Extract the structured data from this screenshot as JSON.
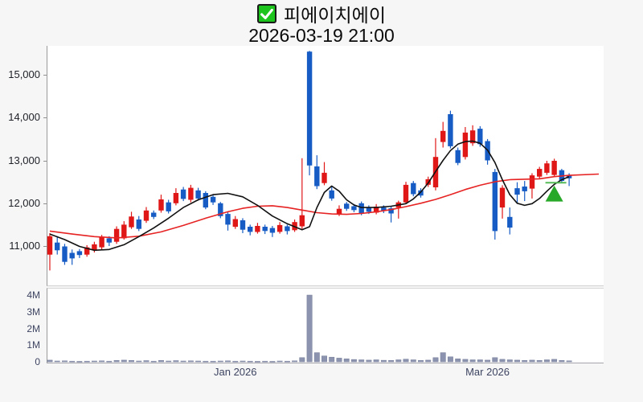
{
  "title": {
    "checkbox_checked": true,
    "name": "피에이치에이",
    "datetime": "2026-03-19 21:00"
  },
  "colors": {
    "up_candle": "#e01717",
    "down_candle": "#165cc4",
    "volume_bar": "#8b93ae",
    "volume_bar_edge": "#767e9a",
    "ma_fast": "#111111",
    "ma_slow": "#e62222",
    "marker_green": "#28a828",
    "marker_line_green": "#56bb56",
    "checkbox_green": "#1dc41d",
    "axis_label_dark": "#1d2026",
    "axis_label_slate": "#3d4460"
  },
  "chart_data": {
    "type": "candlestick",
    "title": "피에이치에이",
    "subtitle": "2026-03-19 21:00",
    "price_axis": {
      "ticks": [
        {
          "value": 15000,
          "label": "15,000"
        },
        {
          "value": 14000,
          "label": "14,000"
        },
        {
          "value": 13000,
          "label": "13,000"
        },
        {
          "value": 12000,
          "label": "12,000"
        },
        {
          "value": 11000,
          "label": "11,000"
        }
      ],
      "visible_range": [
        10080,
        15700
      ]
    },
    "volume_axis": {
      "ticks": [
        {
          "value": 4,
          "label": "4M"
        },
        {
          "value": 3,
          "label": "3M"
        },
        {
          "value": 2,
          "label": "2M"
        },
        {
          "value": 1,
          "label": "1M"
        },
        {
          "value": 0,
          "label": "0"
        }
      ],
      "visible_range_millions": [
        0,
        4.2
      ]
    },
    "x_axis": [
      {
        "label": "Jan 2026",
        "index": 25
      },
      {
        "label": "Mar 2026",
        "index": 59
      }
    ],
    "candles_ohlc": [
      [
        10800,
        11300,
        10430,
        11230
      ],
      [
        11080,
        11230,
        10800,
        10900
      ],
      [
        10990,
        11050,
        10560,
        10630
      ],
      [
        10840,
        10920,
        10560,
        10710
      ],
      [
        10880,
        10930,
        10720,
        10790
      ],
      [
        10800,
        11020,
        10750,
        10970
      ],
      [
        10900,
        11100,
        10850,
        11040
      ],
      [
        10970,
        11260,
        10900,
        11210
      ],
      [
        11180,
        11230,
        11000,
        11080
      ],
      [
        11100,
        11460,
        11050,
        11400
      ],
      [
        11180,
        11580,
        11150,
        11500
      ],
      [
        11440,
        11800,
        11400,
        11690
      ],
      [
        11620,
        11700,
        11350,
        11400
      ],
      [
        11590,
        11910,
        11540,
        11830
      ],
      [
        11780,
        11830,
        11630,
        11680
      ],
      [
        11830,
        12200,
        11780,
        12090
      ],
      [
        12020,
        12080,
        11760,
        11810
      ],
      [
        12000,
        12350,
        11950,
        12240
      ],
      [
        12320,
        12380,
        12050,
        12100
      ],
      [
        12080,
        12430,
        12020,
        12360
      ],
      [
        12300,
        12360,
        12060,
        12110
      ],
      [
        12240,
        12280,
        11860,
        11900
      ],
      [
        12150,
        12190,
        11960,
        12020
      ],
      [
        12000,
        12030,
        11650,
        11700
      ],
      [
        11750,
        11800,
        11360,
        11500
      ],
      [
        11450,
        11700,
        11400,
        11630
      ],
      [
        11600,
        11650,
        11300,
        11380
      ],
      [
        11450,
        11500,
        11250,
        11330
      ],
      [
        11330,
        11540,
        11290,
        11470
      ],
      [
        11450,
        11500,
        11280,
        11350
      ],
      [
        11420,
        11470,
        11210,
        11310
      ],
      [
        11330,
        11560,
        11290,
        11490
      ],
      [
        11460,
        11500,
        11270,
        11350
      ],
      [
        11370,
        11620,
        11330,
        11560
      ],
      [
        11460,
        13050,
        11400,
        11720
      ],
      [
        15540,
        15560,
        12650,
        12880
      ],
      [
        12860,
        13120,
        12330,
        12400
      ],
      [
        12470,
        12960,
        12420,
        12710
      ],
      [
        12300,
        12380,
        12060,
        12110
      ],
      [
        11740,
        11950,
        11700,
        11870
      ],
      [
        11990,
        12030,
        11820,
        11870
      ],
      [
        11930,
        11980,
        11790,
        11840
      ],
      [
        12000,
        12040,
        11720,
        11760
      ],
      [
        11900,
        11950,
        11750,
        11800
      ],
      [
        11780,
        11980,
        11740,
        11920
      ],
      [
        11900,
        11950,
        11770,
        11820
      ],
      [
        11880,
        11920,
        11550,
        11760
      ],
      [
        11900,
        12060,
        11640,
        12020
      ],
      [
        12020,
        12500,
        11980,
        12430
      ],
      [
        12470,
        12520,
        12160,
        12210
      ],
      [
        12300,
        12350,
        12130,
        12180
      ],
      [
        12430,
        12620,
        12380,
        12560
      ],
      [
        12370,
        13520,
        12300,
        13080
      ],
      [
        13430,
        13900,
        13300,
        13690
      ],
      [
        14080,
        14160,
        13280,
        13330
      ],
      [
        13240,
        13300,
        12890,
        12940
      ],
      [
        13080,
        13780,
        13020,
        13650
      ],
      [
        13400,
        13820,
        13340,
        13700
      ],
      [
        13740,
        13800,
        13320,
        13380
      ],
      [
        13450,
        13500,
        12900,
        13000
      ],
      [
        12730,
        12800,
        11150,
        11350
      ],
      [
        11900,
        12420,
        11640,
        12360
      ],
      [
        11680,
        11900,
        11270,
        11430
      ],
      [
        12350,
        12490,
        11990,
        12200
      ],
      [
        12390,
        12520,
        12050,
        12280
      ],
      [
        12340,
        12700,
        12110,
        12650
      ],
      [
        12620,
        12850,
        12560,
        12800
      ],
      [
        12710,
        12990,
        12660,
        12930
      ],
      [
        12660,
        13040,
        12620,
        12990
      ],
      [
        12770,
        12800,
        12470,
        12520
      ],
      [
        12650,
        12700,
        12400,
        12580
      ]
    ],
    "volumes_millions": [
      0.1,
      0.05,
      0.06,
      0.04,
      0.03,
      0.04,
      0.05,
      0.06,
      0.04,
      0.08,
      0.1,
      0.08,
      0.05,
      0.07,
      0.04,
      0.08,
      0.05,
      0.07,
      0.05,
      0.06,
      0.05,
      0.04,
      0.04,
      0.05,
      0.06,
      0.04,
      0.05,
      0.04,
      0.03,
      0.04,
      0.03,
      0.05,
      0.04,
      0.06,
      0.25,
      4.0,
      0.55,
      0.35,
      0.28,
      0.22,
      0.18,
      0.14,
      0.12,
      0.1,
      0.12,
      0.09,
      0.08,
      0.12,
      0.16,
      0.12,
      0.08,
      0.1,
      0.25,
      0.55,
      0.3,
      0.18,
      0.15,
      0.12,
      0.12,
      0.1,
      0.25,
      0.15,
      0.12,
      0.1,
      0.08,
      0.1,
      0.08,
      0.12,
      0.15,
      0.08,
      0.06
    ],
    "ma_fast_points": [
      [
        0,
        11280
      ],
      [
        2,
        11150
      ],
      [
        4,
        10990
      ],
      [
        6,
        10900
      ],
      [
        8,
        10920
      ],
      [
        10,
        11030
      ],
      [
        12,
        11220
      ],
      [
        14,
        11420
      ],
      [
        16,
        11650
      ],
      [
        18,
        11900
      ],
      [
        20,
        12080
      ],
      [
        22,
        12200
      ],
      [
        24,
        12230
      ],
      [
        26,
        12150
      ],
      [
        28,
        11950
      ],
      [
        30,
        11700
      ],
      [
        32,
        11520
      ],
      [
        33,
        11450
      ],
      [
        34,
        11380
      ],
      [
        35,
        11450
      ],
      [
        36,
        11900
      ],
      [
        37,
        12250
      ],
      [
        38,
        12400
      ],
      [
        39,
        12280
      ],
      [
        40,
        12080
      ],
      [
        41,
        11960
      ],
      [
        42,
        11900
      ],
      [
        44,
        11900
      ],
      [
        46,
        11930
      ],
      [
        48,
        11990
      ],
      [
        49,
        12100
      ],
      [
        50,
        12260
      ],
      [
        51,
        12470
      ],
      [
        52,
        12740
      ],
      [
        53,
        13000
      ],
      [
        54,
        13230
      ],
      [
        55,
        13380
      ],
      [
        56,
        13440
      ],
      [
        57,
        13450
      ],
      [
        58,
        13400
      ],
      [
        59,
        13240
      ],
      [
        60,
        12950
      ],
      [
        61,
        12550
      ],
      [
        62,
        12200
      ],
      [
        63,
        12000
      ],
      [
        64,
        11950
      ],
      [
        65,
        11990
      ],
      [
        66,
        12110
      ],
      [
        67,
        12280
      ],
      [
        68,
        12440
      ],
      [
        69,
        12550
      ],
      [
        70,
        12620
      ]
    ],
    "ma_slow_points": [
      [
        0,
        11350
      ],
      [
        3,
        11280
      ],
      [
        6,
        11220
      ],
      [
        9,
        11190
      ],
      [
        12,
        11230
      ],
      [
        15,
        11330
      ],
      [
        18,
        11480
      ],
      [
        21,
        11650
      ],
      [
        24,
        11800
      ],
      [
        26,
        11880
      ],
      [
        28,
        11930
      ],
      [
        30,
        11940
      ],
      [
        32,
        11900
      ],
      [
        34,
        11840
      ],
      [
        36,
        11780
      ],
      [
        38,
        11750
      ],
      [
        40,
        11740
      ],
      [
        42,
        11760
      ],
      [
        44,
        11800
      ],
      [
        46,
        11850
      ],
      [
        48,
        11920
      ],
      [
        50,
        12000
      ],
      [
        52,
        12090
      ],
      [
        54,
        12200
      ],
      [
        56,
        12320
      ],
      [
        58,
        12420
      ],
      [
        60,
        12500
      ],
      [
        62,
        12550
      ],
      [
        64,
        12560
      ],
      [
        66,
        12570
      ],
      [
        68,
        12620
      ],
      [
        70,
        12650
      ],
      [
        74,
        12680
      ]
    ],
    "marker": {
      "type": "triangle-up",
      "index": 68,
      "tip_value": 12410,
      "base_value": 12040,
      "line_value": 12480,
      "meaning": "buy-signal"
    }
  }
}
